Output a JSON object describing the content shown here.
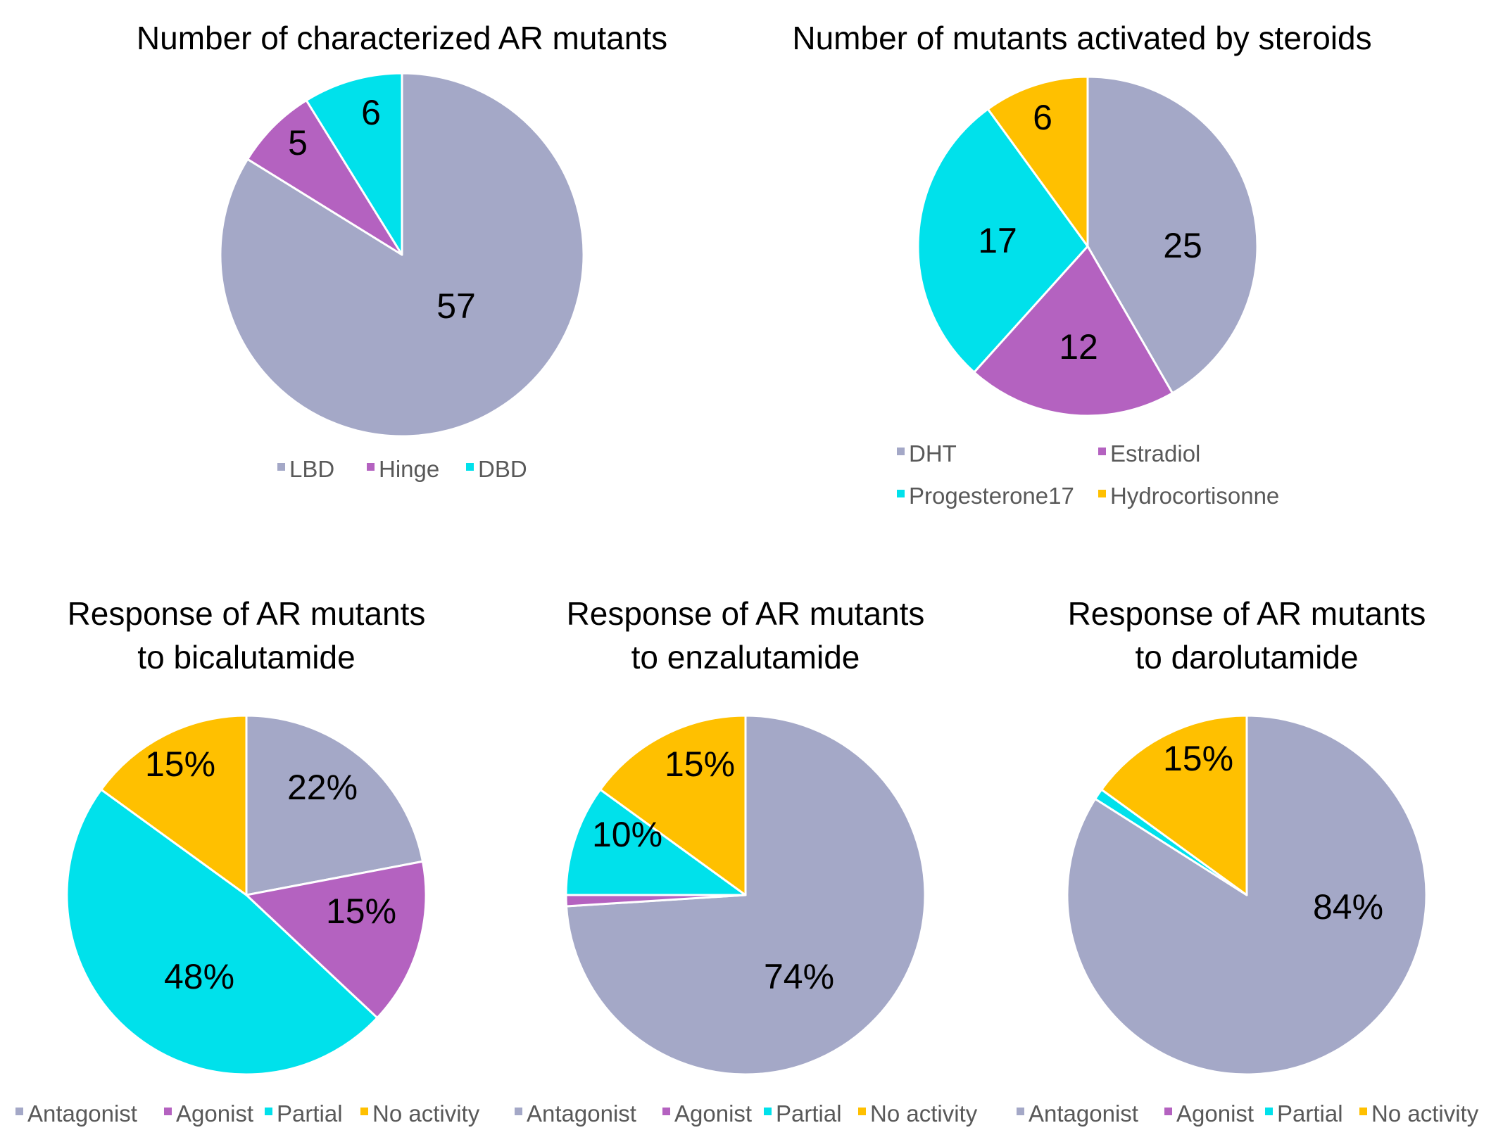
{
  "colors": {
    "gray": "#a4a8c7",
    "purple": "#b462c0",
    "cyan": "#00e1eb",
    "gold": "#ffc000"
  },
  "chart_data": [
    {
      "type": "pie",
      "title_lines": [
        "Number of characterized AR mutants"
      ],
      "categories": [
        "LBD",
        "Hinge",
        "DBD"
      ],
      "values": [
        57,
        5,
        6
      ],
      "labels": [
        "57",
        "5",
        "6"
      ],
      "colors": [
        "gray",
        "purple",
        "cyan"
      ],
      "legend": [
        "LBD",
        "Hinge",
        "DBD"
      ],
      "legend_position": "bottom"
    },
    {
      "type": "pie",
      "title_lines": [
        "Number of mutants activated by steroids"
      ],
      "categories": [
        "DHT",
        "Estradiol",
        "Progesterone17",
        "Hydrocortisonne"
      ],
      "values": [
        25,
        12,
        17,
        6
      ],
      "labels": [
        "25",
        "12",
        "17",
        "6"
      ],
      "colors": [
        "gray",
        "purple",
        "cyan",
        "gold"
      ],
      "legend": [
        "DHT",
        "Estradiol",
        "Progesterone17",
        "Hydrocortisonne"
      ],
      "legend_position": "bottom"
    },
    {
      "type": "pie",
      "title_lines": [
        "Response of AR mutants",
        "to bicalutamide"
      ],
      "categories": [
        "Antagonist",
        "Agonist",
        "Partial",
        "No activity"
      ],
      "values": [
        22,
        15,
        48,
        15
      ],
      "labels": [
        "22%",
        "15%",
        "48%",
        "15%"
      ],
      "colors": [
        "gray",
        "purple",
        "cyan",
        "gold"
      ],
      "legend": [
        "Antagonist",
        "Agonist",
        "Partial",
        "No activity"
      ],
      "legend_position": "bottom"
    },
    {
      "type": "pie",
      "title_lines": [
        "Response of AR mutants",
        "to enzalutamide"
      ],
      "categories": [
        "Antagonist",
        "Agonist",
        "Partial",
        "No activity"
      ],
      "values": [
        74,
        1,
        10,
        15
      ],
      "labels": [
        "74%",
        "",
        "10%",
        "15%"
      ],
      "colors": [
        "gray",
        "purple",
        "cyan",
        "gold"
      ],
      "legend": [
        "Antagonist",
        "Agonist",
        "Partial",
        "No activity"
      ],
      "legend_position": "bottom"
    },
    {
      "type": "pie",
      "title_lines": [
        "Response of AR mutants",
        "to darolutamide"
      ],
      "categories": [
        "Antagonist",
        "Agonist",
        "Partial",
        "No activity"
      ],
      "values": [
        84,
        0,
        1,
        15
      ],
      "labels": [
        "84%",
        "",
        "",
        "15%"
      ],
      "colors": [
        "gray",
        "purple",
        "cyan",
        "gold"
      ],
      "legend": [
        "Antagonist",
        "Agonist",
        "Partial",
        "No activity"
      ],
      "legend_position": "bottom"
    }
  ]
}
